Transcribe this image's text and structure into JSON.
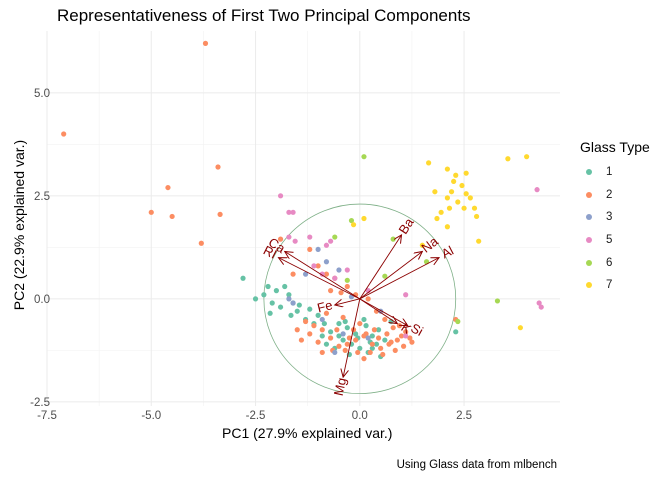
{
  "chart_data": {
    "type": "scatter",
    "title": "Representativeness of First Two Principal Components",
    "xlabel": "PC1 (27.9% explained var.)",
    "ylabel": "PC2 (22.9% explained var.)",
    "caption": "Using Glass data from mlbench",
    "xlim": [
      -7.5,
      4.8
    ],
    "ylim": [
      -2.6,
      6.5
    ],
    "x_ticks": [
      -7.5,
      -5.0,
      -2.5,
      0.0,
      2.5
    ],
    "x_tick_labels": [
      "-7.5",
      "-5.0",
      "-2.5",
      "0.0",
      "2.5"
    ],
    "y_ticks": [
      -2.5,
      0.0,
      2.5,
      5.0
    ],
    "y_tick_labels": [
      "-2.5",
      "0.0",
      "2.5",
      "5.0"
    ],
    "grid": true,
    "legend": {
      "title": "Glass Type",
      "position": "right",
      "entries": [
        {
          "label": "1",
          "color": "#66c2a5"
        },
        {
          "label": "2",
          "color": "#fc8d62"
        },
        {
          "label": "3",
          "color": "#8da0cb"
        },
        {
          "label": "5",
          "color": "#e78ac3"
        },
        {
          "label": "6",
          "color": "#a6d854"
        },
        {
          "label": "7",
          "color": "#ffd92f"
        }
      ]
    },
    "circle": {
      "center": [
        0,
        0
      ],
      "radius": 2.3,
      "color": "#7fb088"
    },
    "vectors": [
      {
        "label": "Ba",
        "x": 1.0,
        "y": 1.55
      },
      {
        "label": "Na",
        "x": 1.5,
        "y": 1.15
      },
      {
        "label": "Al",
        "x": 1.9,
        "y": 1.0
      },
      {
        "label": "Ca",
        "x": -1.8,
        "y": 1.15
      },
      {
        "label": "RI",
        "x": -1.95,
        "y": 1.0
      },
      {
        "label": "Fe",
        "x": -0.6,
        "y": -0.15
      },
      {
        "label": "K",
        "x": 0.9,
        "y": -0.6
      },
      {
        "label": "Si",
        "x": 1.15,
        "y": -0.65
      },
      {
        "label": "Mg",
        "x": -0.4,
        "y": -1.9
      }
    ],
    "series": [
      {
        "name": "1",
        "color": "#66c2a5",
        "points": [
          [
            -2.8,
            0.5
          ],
          [
            -2.2,
            0.3
          ],
          [
            -2.3,
            0.1
          ],
          [
            -2.0,
            0.2
          ],
          [
            -1.8,
            0.3
          ],
          [
            -1.7,
            0.1
          ],
          [
            -2.1,
            -0.1
          ],
          [
            -1.9,
            -0.2
          ],
          [
            -2.15,
            -0.35
          ],
          [
            -1.5,
            -0.3
          ],
          [
            -1.3,
            -0.5
          ],
          [
            -1.1,
            -0.6
          ],
          [
            -0.9,
            -0.9
          ],
          [
            -0.8,
            -1.1
          ],
          [
            -0.6,
            -1.2
          ],
          [
            -0.5,
            -0.9
          ],
          [
            -0.4,
            -1.0
          ],
          [
            -0.3,
            -0.7
          ],
          [
            -0.2,
            -1.1
          ],
          [
            0.0,
            -1.2
          ],
          [
            0.2,
            -1.3
          ],
          [
            0.3,
            -0.9
          ],
          [
            0.4,
            -1.1
          ],
          [
            0.5,
            -1.4
          ],
          [
            0.3,
            -1.2
          ],
          [
            -0.1,
            -0.85
          ],
          [
            -1.6,
            -0.1
          ],
          [
            -1.45,
            -0.15
          ],
          [
            -1.2,
            -0.25
          ],
          [
            -0.7,
            -0.8
          ],
          [
            -0.5,
            -0.6
          ],
          [
            0.1,
            -0.5
          ],
          [
            -0.25,
            -1.35
          ],
          [
            0.45,
            -0.75
          ],
          [
            -1.0,
            -0.4
          ],
          [
            -0.35,
            -0.55
          ],
          [
            0.6,
            -1.0
          ],
          [
            -2.5,
            0.0
          ],
          [
            -1.65,
            -0.4
          ],
          [
            0.15,
            -0.65
          ],
          [
            0.75,
            -0.55
          ],
          [
            -0.85,
            -0.6
          ],
          [
            0.25,
            -1.05
          ],
          [
            -0.05,
            -0.95
          ],
          [
            2.3,
            -0.8
          ]
        ]
      },
      {
        "name": "2",
        "color": "#fc8d62",
        "points": [
          [
            -7.1,
            4.0
          ],
          [
            -3.7,
            6.2
          ],
          [
            -3.4,
            3.2
          ],
          [
            -4.6,
            2.7
          ],
          [
            -5.0,
            2.1
          ],
          [
            -4.5,
            2.0
          ],
          [
            -3.8,
            1.35
          ],
          [
            -3.35,
            2.05
          ],
          [
            -1.9,
            1.45
          ],
          [
            -1.2,
            1.2
          ],
          [
            -1.0,
            0.8
          ],
          [
            -0.8,
            0.6
          ],
          [
            -0.6,
            0.5
          ],
          [
            -0.3,
            0.3
          ],
          [
            -0.1,
            0.1
          ],
          [
            0.2,
            0.0
          ],
          [
            0.4,
            -0.3
          ],
          [
            0.6,
            -0.5
          ],
          [
            0.8,
            -0.7
          ],
          [
            1.0,
            -0.9
          ],
          [
            0.9,
            -1.0
          ],
          [
            0.7,
            -1.1
          ],
          [
            0.5,
            -1.2
          ],
          [
            0.3,
            -1.1
          ],
          [
            0.1,
            -0.9
          ],
          [
            -0.1,
            -1.0
          ],
          [
            -0.3,
            -1.1
          ],
          [
            -0.5,
            -1.15
          ],
          [
            -0.7,
            -0.95
          ],
          [
            -0.9,
            -0.75
          ],
          [
            -1.1,
            -0.65
          ],
          [
            -1.3,
            -0.55
          ],
          [
            -1.5,
            -0.75
          ],
          [
            -0.8,
            -0.35
          ],
          [
            -0.4,
            -0.45
          ],
          [
            0.0,
            -0.6
          ],
          [
            0.35,
            -0.75
          ],
          [
            0.65,
            -0.85
          ],
          [
            0.95,
            -0.65
          ],
          [
            1.1,
            -0.8
          ],
          [
            1.2,
            -0.95
          ],
          [
            0.85,
            -1.25
          ],
          [
            0.55,
            -1.35
          ],
          [
            0.25,
            -1.3
          ],
          [
            -0.05,
            -1.3
          ],
          [
            -0.35,
            -1.25
          ],
          [
            -0.65,
            -1.25
          ],
          [
            -1.0,
            -1.05
          ],
          [
            -1.2,
            -0.85
          ],
          [
            -0.15,
            -0.75
          ],
          [
            0.15,
            -0.85
          ],
          [
            0.45,
            -0.95
          ],
          [
            0.75,
            -1.05
          ],
          [
            1.05,
            -1.15
          ],
          [
            -0.55,
            -0.75
          ],
          [
            -0.25,
            -0.95
          ],
          [
            1.25,
            -1.05
          ],
          [
            -1.4,
            -1.0
          ],
          [
            -0.9,
            -1.3
          ],
          [
            0.1,
            -1.45
          ],
          [
            2.3,
            -0.5
          ],
          [
            -0.45,
            0.15
          ],
          [
            -1.6,
            0.6
          ],
          [
            -0.7,
            0.2
          ]
        ]
      },
      {
        "name": "3",
        "color": "#8da0cb",
        "points": [
          [
            -1.0,
            1.2
          ],
          [
            -0.8,
            0.9
          ],
          [
            -0.5,
            0.7
          ],
          [
            -1.3,
            0.6
          ],
          [
            -1.6,
            -0.1
          ],
          [
            -0.2,
            0.05
          ],
          [
            0.5,
            -0.3
          ],
          [
            -0.9,
            -0.5
          ],
          [
            -0.4,
            -0.85
          ],
          [
            -1.7,
            0.0
          ],
          [
            -0.6,
            -1.3
          ],
          [
            0.2,
            -0.95
          ]
        ]
      },
      {
        "name": "5",
        "color": "#e78ac3",
        "points": [
          [
            -1.9,
            2.5
          ],
          [
            -1.7,
            2.1
          ],
          [
            -1.6,
            2.1
          ],
          [
            -1.55,
            1.4
          ],
          [
            -1.7,
            1.5
          ],
          [
            -1.2,
            1.5
          ],
          [
            -0.8,
            1.3
          ],
          [
            -0.7,
            1.4
          ],
          [
            -1.1,
            0.8
          ],
          [
            -0.9,
            0.6
          ],
          [
            -0.6,
            0.5
          ],
          [
            -0.3,
            0.7
          ],
          [
            0.2,
            0.2
          ],
          [
            1.1,
            0.1
          ],
          [
            1.1,
            -0.9
          ],
          [
            4.25,
            2.65
          ],
          [
            4.3,
            -0.1
          ],
          [
            4.35,
            -0.2
          ]
        ]
      },
      {
        "name": "6",
        "color": "#a6d854",
        "points": [
          [
            0.1,
            3.45
          ],
          [
            -0.6,
            1.5
          ],
          [
            0.8,
            1.45
          ],
          [
            -0.2,
            1.9
          ],
          [
            0.6,
            0.55
          ],
          [
            -0.3,
            0.45
          ],
          [
            3.3,
            -0.05
          ],
          [
            2.35,
            -0.55
          ],
          [
            1.6,
            0.9
          ]
        ]
      },
      {
        "name": "7",
        "color": "#ffd92f",
        "points": [
          [
            1.65,
            3.3
          ],
          [
            2.1,
            3.15
          ],
          [
            2.3,
            3.0
          ],
          [
            2.55,
            3.05
          ],
          [
            2.25,
            2.85
          ],
          [
            2.45,
            2.75
          ],
          [
            2.2,
            2.6
          ],
          [
            2.55,
            2.55
          ],
          [
            2.1,
            2.45
          ],
          [
            2.35,
            2.35
          ],
          [
            2.15,
            2.2
          ],
          [
            2.5,
            2.2
          ],
          [
            1.95,
            2.1
          ],
          [
            2.75,
            2.2
          ],
          [
            2.8,
            2.0
          ],
          [
            2.85,
            1.4
          ],
          [
            3.55,
            3.4
          ],
          [
            4.0,
            3.45
          ],
          [
            3.85,
            -0.7
          ],
          [
            0.1,
            1.95
          ],
          [
            -0.15,
            1.8
          ],
          [
            1.5,
            1.3
          ],
          [
            1.85,
            1.95
          ],
          [
            2.1,
            1.75
          ],
          [
            2.65,
            2.45
          ],
          [
            1.8,
            2.6
          ]
        ]
      }
    ]
  }
}
